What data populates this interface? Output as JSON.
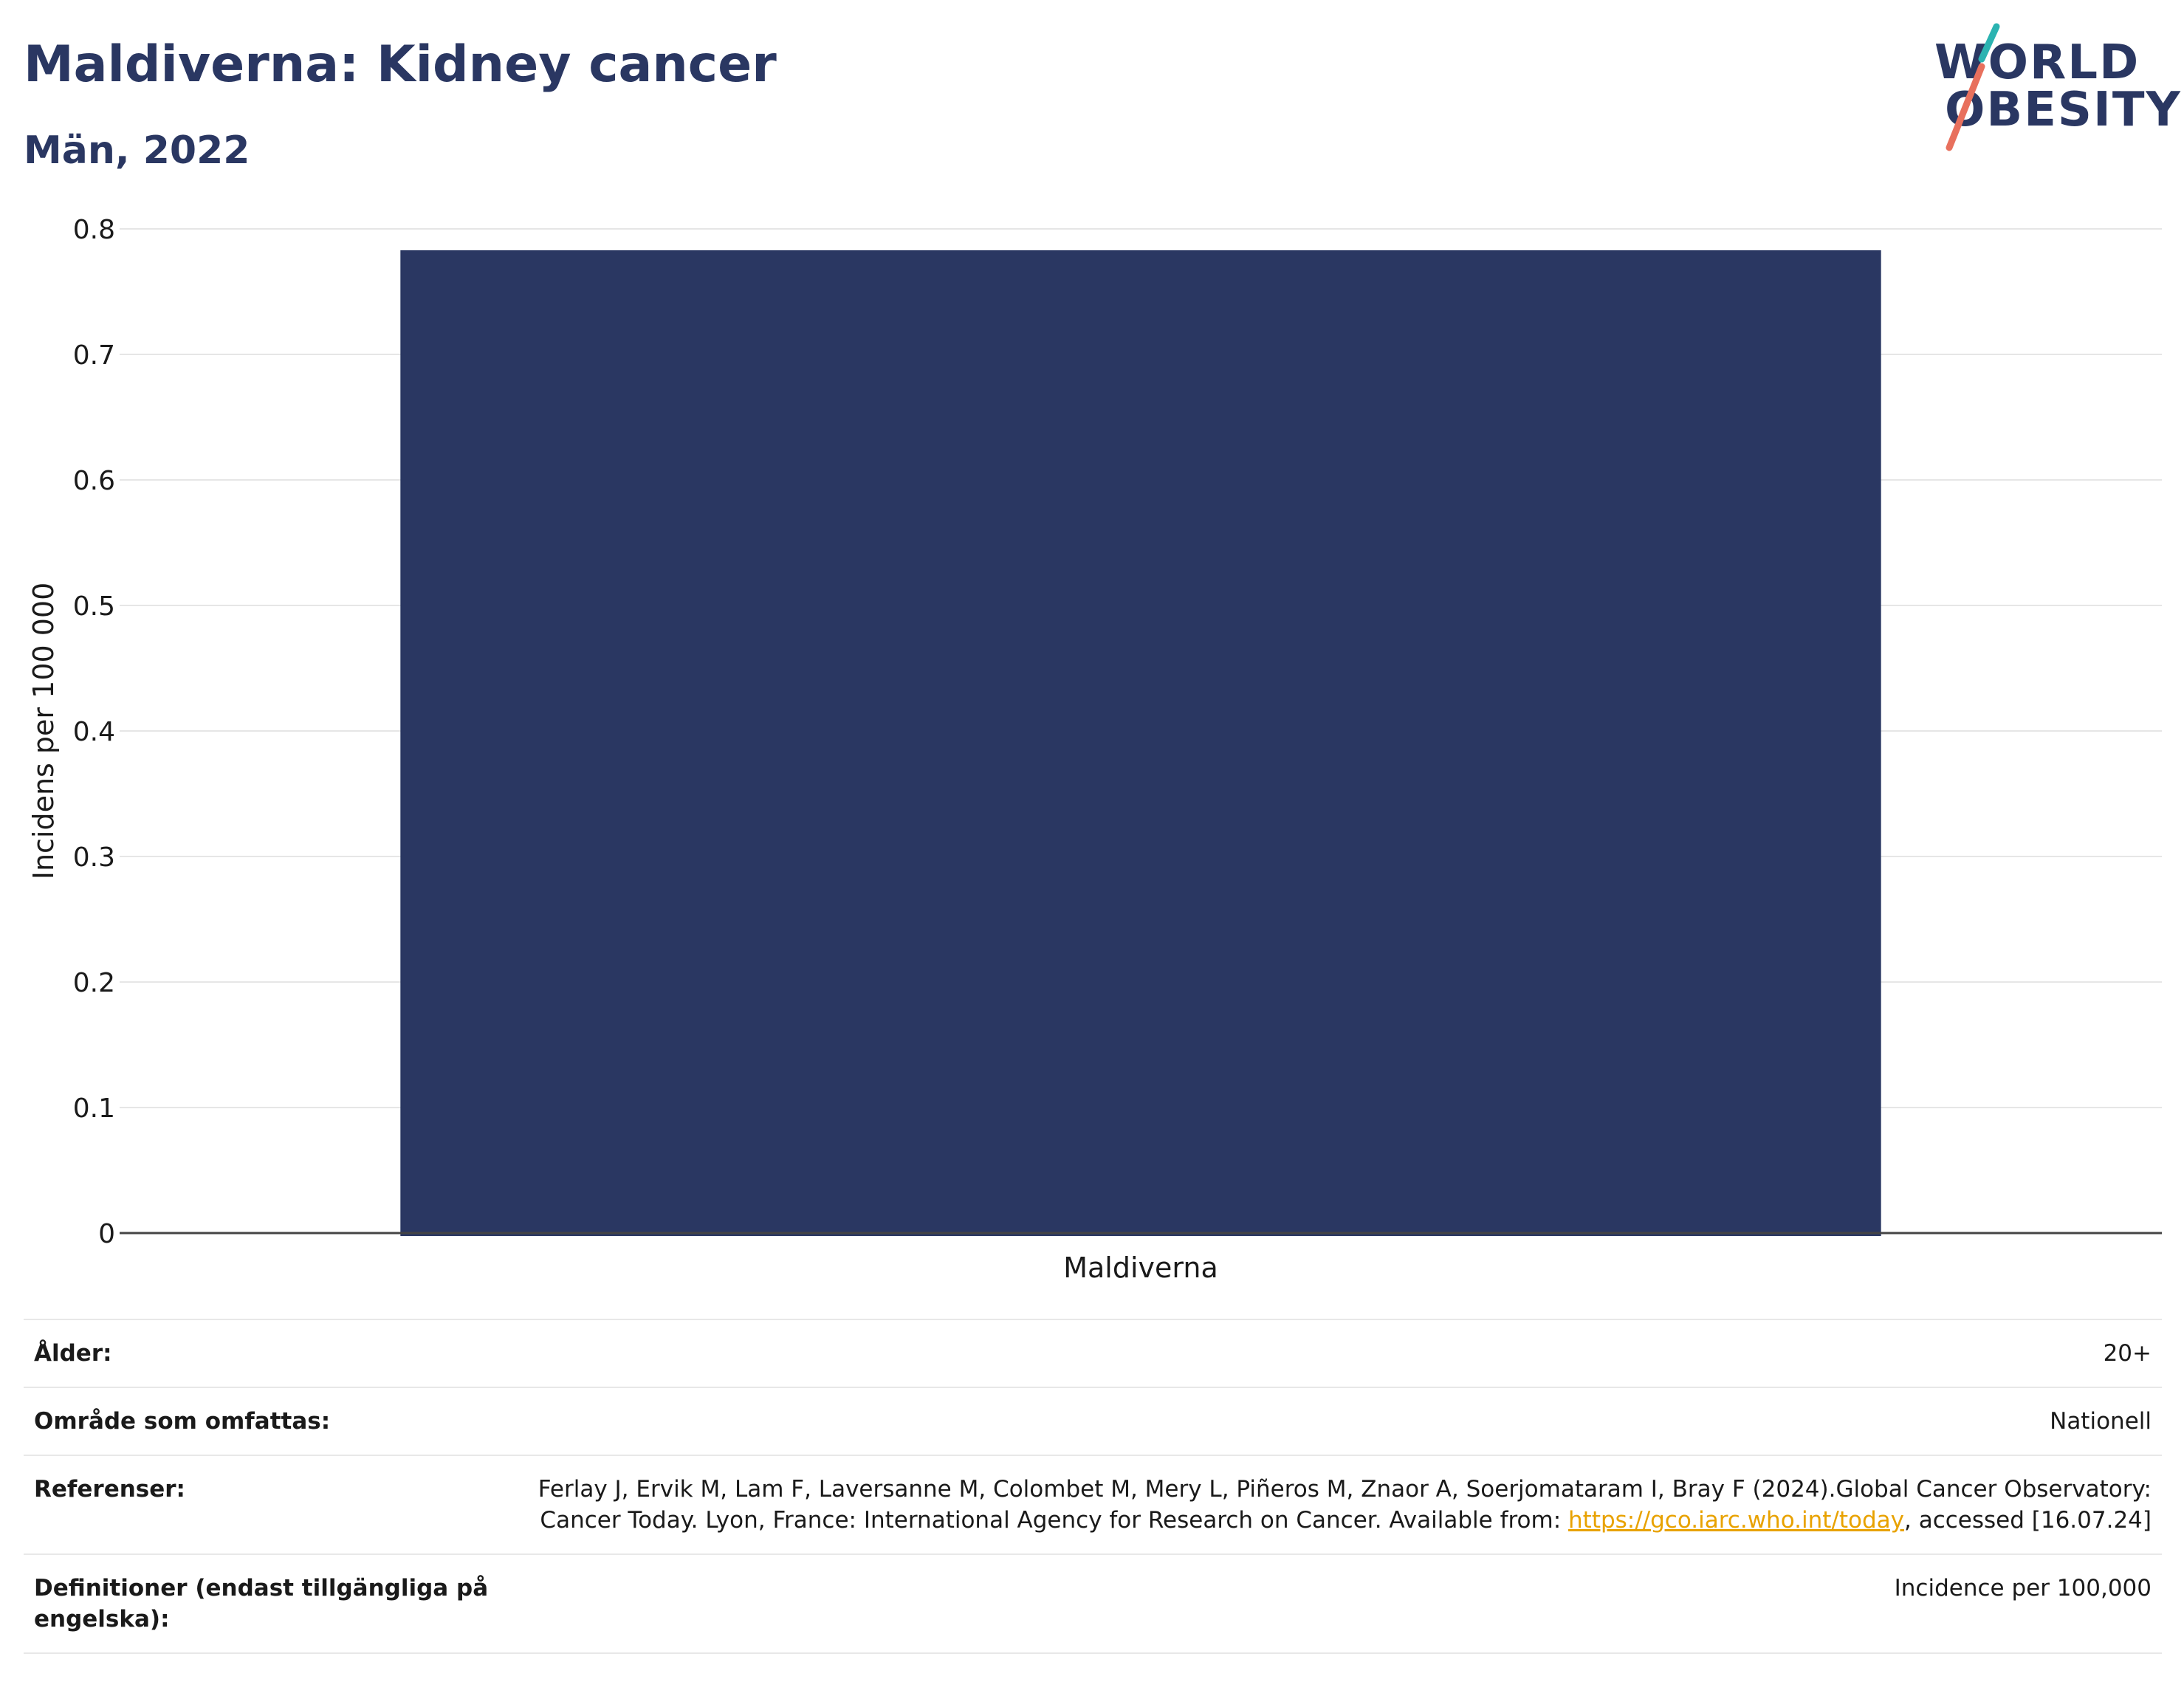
{
  "header": {
    "title": "Maldiverna: Kidney cancer",
    "subtitle": "Män, 2022",
    "logo_line1": "WORLD",
    "logo_line2": "OBESITY"
  },
  "colors": {
    "bar": "#2a3762",
    "title": "#2a3762",
    "logo_teal": "#2bb3b1",
    "logo_coral": "#e8705d",
    "link": "#e8a200"
  },
  "chart_data": {
    "type": "bar",
    "categories": [
      "Maldiverna"
    ],
    "values": [
      0.783
    ],
    "ylabel": "Incidens per 100 000",
    "xlabel": "",
    "ylim": [
      0,
      0.8
    ],
    "yticks": [
      "0",
      "0.1",
      "0.2",
      "0.3",
      "0.4",
      "0.5",
      "0.6",
      "0.7",
      "0.8"
    ],
    "grid": true
  },
  "meta": {
    "age_label": "Ålder:",
    "age_value": "20+",
    "area_label": "Område som omfattas:",
    "area_value": "Nationell",
    "ref_label": "Referenser:",
    "ref_text_before": "Ferlay J, Ervik M, Lam F, Laversanne M, Colombet M, Mery L, Piñeros M, Znaor A, Soerjomataram I, Bray F (2024).Global Cancer Observatory: Cancer Today. Lyon, France: International Agency for Research on Cancer. Available from: ",
    "ref_link": "https://gco.iarc.who.int/today",
    "ref_text_after": ", accessed [16.07.24]",
    "def_label": "Definitioner (endast tillgängliga på engelska):",
    "def_value": "Incidence per 100,000"
  }
}
